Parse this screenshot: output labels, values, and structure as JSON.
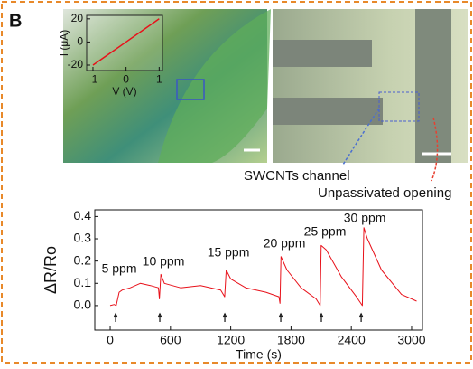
{
  "panel_label": "B",
  "callouts": [
    "SWCNTs channel",
    "Unpassivated opening"
  ],
  "chart_data": [
    {
      "type": "line",
      "xlabel": "V (V)",
      "ylabel": "I (μA)",
      "x": [
        -1,
        1
      ],
      "values": [
        -20,
        20
      ],
      "color": "#e8111a",
      "xlim": [
        -1.19,
        1.1
      ],
      "ylim": [
        -24.7,
        23
      ],
      "xticks": [
        -1,
        0,
        1
      ],
      "yticks": [
        -20,
        0,
        20
      ]
    },
    {
      "type": "line",
      "xlabel": "Time (s)",
      "ylabel": "ΔR/Ro",
      "x": [
        0,
        40,
        60,
        90,
        120,
        200,
        300,
        400,
        480,
        490,
        505,
        540,
        700,
        900,
        1100,
        1140,
        1155,
        1200,
        1350,
        1550,
        1680,
        1690,
        1700,
        1760,
        1900,
        2050,
        2090,
        2100,
        2150,
        2300,
        2450,
        2510,
        2525,
        2560,
        2700,
        2900,
        3000,
        3050
      ],
      "values": [
        0.0,
        0.005,
        0.0,
        0.06,
        0.07,
        0.08,
        0.1,
        0.09,
        0.08,
        0.03,
        0.14,
        0.1,
        0.08,
        0.09,
        0.07,
        0.04,
        0.16,
        0.12,
        0.08,
        0.06,
        0.04,
        0.01,
        0.22,
        0.16,
        0.08,
        0.03,
        0.0,
        0.27,
        0.25,
        0.13,
        0.04,
        0.0,
        0.35,
        0.3,
        0.16,
        0.05,
        0.03,
        0.02
      ],
      "color": "#e8111a",
      "arrow_x": [
        54,
        494,
        1141,
        1698,
        2102,
        2498
      ],
      "annotations": [
        "5 ppm",
        "10 ppm",
        "15 ppm",
        "20 ppm",
        "25 ppm",
        "30 ppm"
      ],
      "xlim": [
        -153,
        3108
      ],
      "ylim": [
        -0.11,
        0.43
      ],
      "xticks": [
        0,
        600,
        1200,
        1800,
        2400,
        3000
      ],
      "yticks": [
        {
          "value": 0,
          "label": "0.0"
        },
        0.1,
        0.2,
        0.3,
        0.4
      ]
    }
  ]
}
